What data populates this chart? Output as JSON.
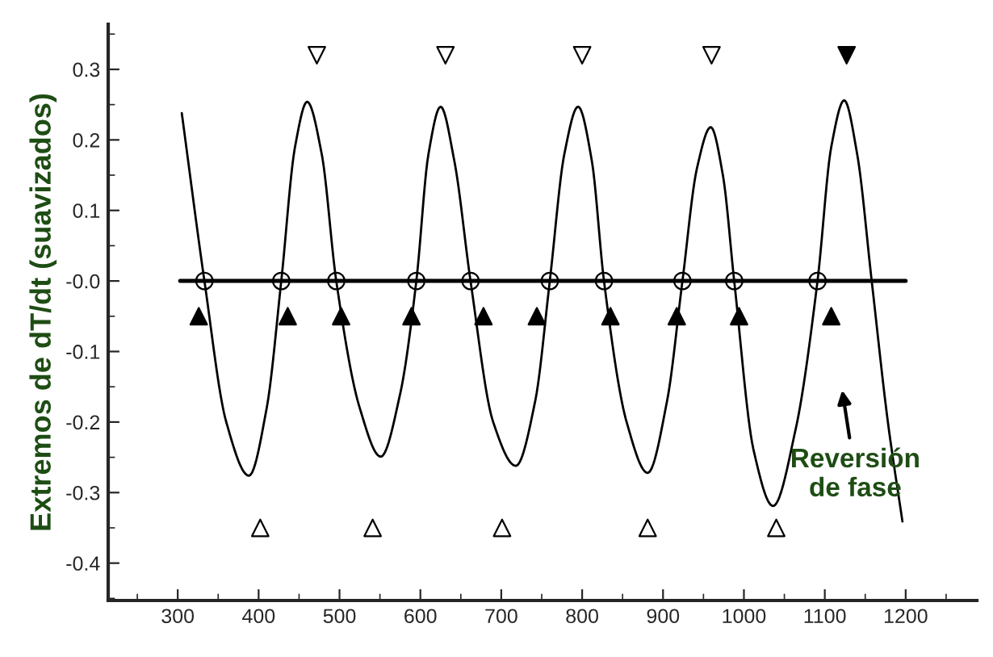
{
  "chart_data": {
    "type": "line",
    "ylabel": "Extremos de dT/dt (suavizados)",
    "xlim": [
      214,
      1288
    ],
    "ylim": [
      -0.453,
      0.364
    ],
    "xticks": [
      300,
      400,
      500,
      600,
      700,
      800,
      900,
      1000,
      1100,
      1200
    ],
    "yticks": [
      {
        "value": -0.4,
        "label": "-0.4"
      },
      {
        "value": -0.3,
        "label": "-0.3"
      },
      {
        "value": -0.2,
        "label": "-0.2"
      },
      {
        "value": -0.1,
        "label": "-0.1"
      },
      {
        "value": 0,
        "label": "-0.0"
      },
      {
        "value": 0.1,
        "label": "0.1"
      },
      {
        "value": 0.2,
        "label": "0.2"
      },
      {
        "value": 0.3,
        "label": "0.3"
      }
    ],
    "grid": false,
    "legend": false,
    "series": [
      {
        "color": "#000000",
        "marker": "none",
        "line_style": "solid",
        "x": [
          305,
          333,
          360,
          388,
          410,
          428,
          445,
          460,
          478,
          496,
          525,
          551,
          575,
          595,
          610,
          625,
          642,
          662,
          690,
          718,
          742,
          760,
          778,
          795,
          812,
          827,
          855,
          881,
          905,
          924,
          942,
          959,
          974,
          988,
          1012,
          1036,
          1064,
          1091,
          1108,
          1124,
          1140,
          1158,
          1178,
          1196
        ],
        "values": [
          0.238,
          0,
          -0.2,
          -0.276,
          -0.18,
          0,
          0.19,
          0.254,
          0.18,
          0,
          -0.18,
          -0.249,
          -0.16,
          0,
          0.18,
          0.247,
          0.17,
          0,
          -0.2,
          -0.262,
          -0.17,
          0,
          0.18,
          0.247,
          0.17,
          0,
          -0.2,
          -0.272,
          -0.17,
          0,
          0.16,
          0.218,
          0.15,
          0,
          -0.24,
          -0.319,
          -0.21,
          0,
          0.19,
          0.256,
          0.18,
          0,
          -0.2,
          -0.341
        ]
      },
      {
        "color": "#000000",
        "marker": "none",
        "line_style": "solid",
        "x": [
          303,
          1200
        ],
        "values": [
          0,
          0
        ]
      },
      {
        "type": "scatter",
        "color": "#ffffff",
        "marker": "circle",
        "x": [
          333,
          428,
          496,
          595,
          662,
          760,
          827,
          924,
          988,
          1091
        ],
        "values": [
          0,
          0,
          0,
          0,
          0,
          0,
          0,
          0,
          0,
          0
        ]
      },
      {
        "type": "scatter",
        "color": "#000000",
        "marker": "triangle",
        "x": [
          326,
          436,
          502,
          589,
          678,
          744,
          835,
          917,
          994,
          1108
        ],
        "values": [
          -0.05,
          -0.05,
          -0.05,
          -0.05,
          -0.05,
          -0.05,
          -0.05,
          -0.05,
          -0.05,
          -0.05
        ]
      },
      {
        "type": "scatter",
        "color": "#ffffff",
        "marker": "triangle",
        "x": [
          402,
          541,
          701,
          881,
          1040
        ],
        "values": [
          -0.35,
          -0.35,
          -0.35,
          -0.35,
          -0.35
        ]
      },
      {
        "type": "scatter",
        "color": "#ffffff",
        "marker": "triangle_down",
        "x": [
          472,
          631,
          800,
          960
        ],
        "values": [
          0.32,
          0.32,
          0.32,
          0.32
        ]
      },
      {
        "type": "scatter",
        "color": "#000000",
        "marker": "triangle_down",
        "x": [
          1127
        ],
        "values": [
          0.32
        ]
      }
    ],
    "annotations": [
      "Reversión\nde fase"
    ]
  }
}
